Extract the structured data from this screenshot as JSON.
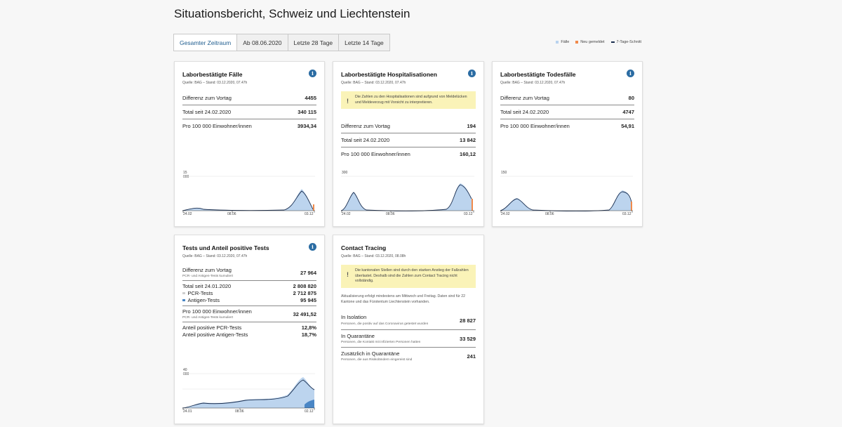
{
  "page": {
    "title": "Situationsbericht, Schweiz und Liechtenstein"
  },
  "tabs": [
    {
      "label": "Gesamter Zeitraum",
      "active": true
    },
    {
      "label": "Ab 08.06.2020",
      "active": false
    },
    {
      "label": "Letzte 28 Tage",
      "active": false
    },
    {
      "label": "Letzte 14 Tage",
      "active": false
    }
  ],
  "legend": {
    "items": [
      {
        "label": "Fälle",
        "color": "#b9d3ee"
      },
      {
        "label": "Neu gemeldet",
        "color": "#f08a4b"
      },
      {
        "label": "7-Tage-Schnitt",
        "color": "#1a2e4f"
      }
    ]
  },
  "cards": {
    "cases": {
      "title": "Laborbestätigte Fälle",
      "source": "Quelle: BAG – Stand: 03.12.2020, 07.47h",
      "rows": [
        {
          "label": "Differenz zum Vortag",
          "value": "4455"
        },
        {
          "label": "Total seit 24.02.2020",
          "value": "340 115"
        },
        {
          "label": "Pro 100 000 Einwohner/innen",
          "value": "3934,34"
        }
      ],
      "chart": {
        "ymax_label": "15 000",
        "x_start": "24.02",
        "x_mid": "08.06",
        "x_end": "03.12"
      }
    },
    "hosp": {
      "title": "Laborbestätigte Hospitalisationen",
      "source": "Quelle: BAG – Stand: 03.12.2020, 07.47h",
      "warning": "Die Zahlen zu den Hospitalisationen sind aufgrund von Meldelücken und Meldeverzug mit Vorsicht zu interpretieren.",
      "rows": [
        {
          "label": "Differenz zum Vortag",
          "value": "194"
        },
        {
          "label": "Total seit 24.02.2020",
          "value": "13 842"
        },
        {
          "label": "Pro 100 000 Einwohner/innen",
          "value": "160,12"
        }
      ],
      "chart": {
        "ymax_label": "300",
        "x_start": "24.02",
        "x_mid": "08.06",
        "x_end": "03.12"
      }
    },
    "deaths": {
      "title": "Laborbestätigte Todesfälle",
      "source": "Quelle: BAG – Stand: 03.12.2020, 07.47h",
      "rows": [
        {
          "label": "Differenz zum Vortag",
          "value": "80"
        },
        {
          "label": "Total seit 24.02.2020",
          "value": "4747"
        },
        {
          "label": "Pro 100 000 Einwohner/innen",
          "value": "54,91"
        }
      ],
      "chart": {
        "ymax_label": "150",
        "x_start": "24.02",
        "x_mid": "08.06",
        "x_end": "03.12"
      }
    },
    "tests": {
      "title": "Tests und Anteil positive Tests",
      "source": "Quelle: BAG – Stand: 03.12.2020, 07.47h",
      "diff_label": "Differenz zum Vortag",
      "diff_sub": "PCR- und Antigen-Tests kumuliert",
      "diff_value": "27 964",
      "total_label": "Total seit 24.01.2020",
      "total_value": "2 808 820",
      "pcr_label": "PCR-Tests",
      "pcr_value": "2 712 875",
      "antigen_label": "Antigen-Tests",
      "antigen_value": "95 945",
      "per_label": "Pro 100 000 Einwohner/innen",
      "per_sub": "PCR- und Antigen-Tests kumuliert",
      "per_value": "32 491,52",
      "pos_pcr_label": "Anteil positive PCR-Tests",
      "pos_pcr_value": "12,8%",
      "pos_ag_label": "Anteil positive Antigen-Tests",
      "pos_ag_value": "18,7%",
      "chart": {
        "ymax_label": "40 000",
        "x_start": "24.01",
        "x_mid": "08.06",
        "x_end": "02.12"
      }
    },
    "tracing": {
      "title": "Contact Tracing",
      "source": "Quelle: BAG – Stand: 03.12.2020, 08.08h",
      "warning": "Die kantonalen Stellen sind durch den starken Anstieg der Fallzahlen überlastet. Deshalb sind die Zahlen zum Contact Tracing nicht vollständig.",
      "note": "Aktualisierung erfolgt mindestens am Mittwoch und Freitag. Daten sind für 22 Kantone und das Fürstentum Liechtenstein vorhanden.",
      "rows": [
        {
          "label": "In Isolation",
          "sub": "Personen, die positiv auf das Coronavirus getestet wurden",
          "value": "28 827"
        },
        {
          "label": "In Quarantäne",
          "sub": "Personen, die Kontakt mit infizierten Personen hatten",
          "value": "33 529"
        },
        {
          "label": "Zusätzlich in Quarantäne",
          "sub": "Personen, die aus Risikoländern eingereist sind",
          "value": "241"
        }
      ]
    }
  }
}
